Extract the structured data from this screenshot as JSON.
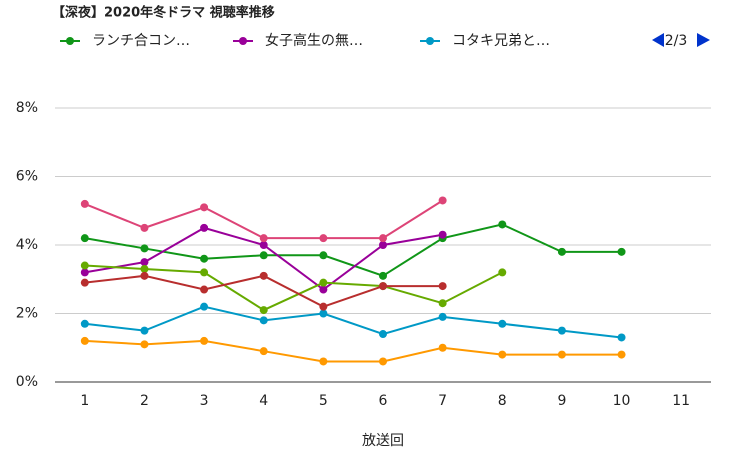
{
  "chart_data": {
    "type": "line",
    "title": "【深夜】2020年冬ドラマ 視聴率推移",
    "legend_page": "2/3",
    "legend": "top",
    "x_label": "放送回",
    "x": [
      1,
      2,
      3,
      4,
      5,
      6,
      7,
      8,
      9,
      10,
      11
    ],
    "xlim": [
      0.5,
      11.5
    ],
    "xticks": [
      1,
      2,
      3,
      4,
      5,
      6,
      7,
      8,
      9,
      10,
      11
    ],
    "ylim": [
      0,
      8
    ],
    "yticks": [
      {
        "value": 0,
        "label": "0%"
      },
      {
        "value": 2,
        "label": "2%"
      },
      {
        "value": 4,
        "label": "4%"
      },
      {
        "value": 6,
        "label": "6%"
      },
      {
        "value": 8,
        "label": "8%"
      }
    ],
    "grid": true,
    "series": [
      {
        "name": "ランチ合コン…",
        "color": "#109618",
        "values": [
          4.2,
          3.9,
          3.6,
          3.7,
          3.7,
          3.1,
          4.2,
          4.6,
          3.8,
          3.8,
          null
        ]
      },
      {
        "name": "女子高生の無…",
        "color": "#990099",
        "values": [
          3.2,
          3.5,
          4.5,
          4.0,
          2.7,
          4.0,
          4.3,
          null,
          null,
          null,
          null
        ]
      },
      {
        "name": "コタキ兄弟と…",
        "color": "#0099c6",
        "values": [
          1.7,
          1.5,
          2.2,
          1.8,
          2.0,
          1.4,
          1.9,
          1.7,
          1.5,
          1.3,
          null
        ]
      },
      {
        "color": "#dd4477",
        "values": [
          5.2,
          4.5,
          5.1,
          4.2,
          4.2,
          4.2,
          5.3,
          null,
          null,
          null,
          null
        ]
      },
      {
        "color": "#66aa00",
        "values": [
          3.4,
          3.3,
          3.2,
          2.1,
          2.9,
          2.8,
          2.3,
          3.2,
          null,
          null,
          null
        ]
      },
      {
        "color": "#b82e2e",
        "values": [
          2.9,
          3.1,
          2.7,
          3.1,
          2.2,
          2.8,
          2.8,
          null,
          null,
          null,
          null
        ]
      },
      {
        "color": "#ff9900",
        "values": [
          1.2,
          1.1,
          1.2,
          0.9,
          0.6,
          0.6,
          1.0,
          0.8,
          0.8,
          0.8,
          null
        ]
      }
    ]
  }
}
